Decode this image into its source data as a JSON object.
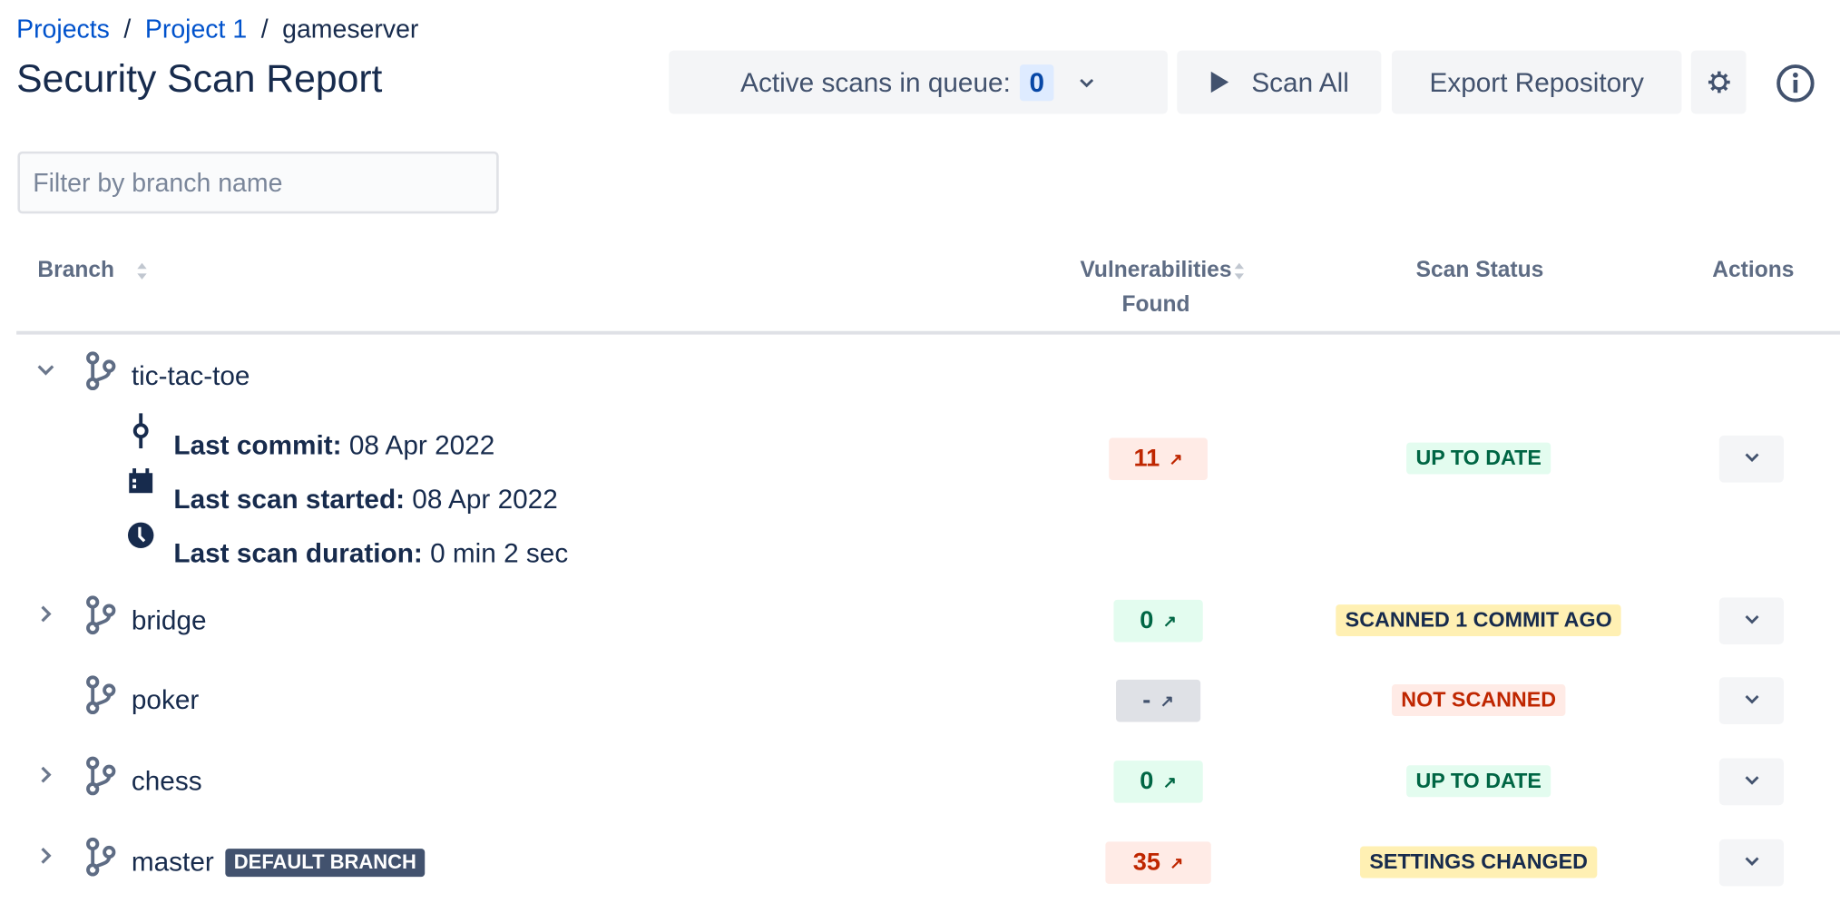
{
  "breadcrumb": [
    "Projects",
    "Project 1",
    "gameserver"
  ],
  "page_title": "Security Scan Report",
  "toolbar": {
    "queue_label": "Active scans in queue:",
    "queue_count": "0",
    "scan_all": "Scan All",
    "export": "Export Repository"
  },
  "filter": {
    "placeholder": "Filter by branch name",
    "value": ""
  },
  "table": {
    "headers": {
      "branch": "Branch",
      "vuln1": "Vulnerabilities",
      "vuln2": "Found",
      "status": "Scan Status",
      "actions": "Actions"
    },
    "rows": [
      {
        "name": "tic-tac-toe",
        "expanded": true,
        "vulns": "11",
        "vuln_tone": "red",
        "status": "UP TO DATE",
        "status_tone": "green",
        "details": {
          "commit_label": "Last commit:",
          "commit": "08 Apr 2022",
          "started_label": "Last scan started:",
          "started": "08 Apr 2022",
          "duration_label": "Last scan duration:",
          "duration": "0 min 2 sec"
        }
      },
      {
        "name": "bridge",
        "vulns": "0",
        "vuln_tone": "green",
        "status": "SCANNED 1 COMMIT AGO",
        "status_tone": "yellow"
      },
      {
        "name": "poker",
        "vulns": "-",
        "vuln_tone": "gray",
        "status": "NOT SCANNED",
        "status_tone": "red"
      },
      {
        "name": "chess",
        "vulns": "0",
        "vuln_tone": "green",
        "status": "UP TO DATE",
        "status_tone": "green"
      },
      {
        "name": "master",
        "default_label": "DEFAULT BRANCH",
        "vulns": "35",
        "vuln_tone": "red",
        "status": "SETTINGS CHANGED",
        "status_tone": "yellow"
      }
    ]
  },
  "colors": {
    "link": "#0052CC",
    "text": "#172B4D",
    "red_bg": "#FFEBE6",
    "red_fg": "#BF2600",
    "green_bg": "#E3FCEF",
    "green_fg": "#006644",
    "yellow_bg": "#FFF0B3",
    "yellow_fg": "#172B4D",
    "gray_bg": "#DFE1E6",
    "gray_fg": "#42526E"
  }
}
